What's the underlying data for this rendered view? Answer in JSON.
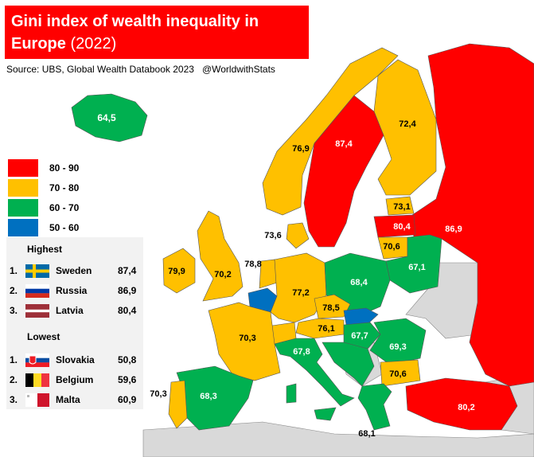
{
  "title": {
    "main_line1": "Gini index of wealth inequality in",
    "main_line2": "Europe",
    "year": "(2022)"
  },
  "source": "Source: UBS, Global Wealth Databook 2023",
  "handle": "@WorldwithStats",
  "colors": {
    "title_bg": "#ff0000",
    "c80_90": "#ff0000",
    "c70_80": "#ffc000",
    "c60_70": "#00b050",
    "c50_60": "#0070c0",
    "nodata": "#d9d9d9"
  },
  "legend": [
    {
      "label": "80 - 90",
      "color": "#ff0000"
    },
    {
      "label": "70 - 80",
      "color": "#ffc000"
    },
    {
      "label": "60 - 70",
      "color": "#00b050"
    },
    {
      "label": "50 - 60",
      "color": "#0070c0"
    }
  ],
  "highest": {
    "heading": "Highest",
    "items": [
      {
        "rank": "1.",
        "country": "Sweden",
        "value": "87,4",
        "flag": "sweden-flag"
      },
      {
        "rank": "2.",
        "country": "Russia",
        "value": "86,9",
        "flag": "russia-flag"
      },
      {
        "rank": "3.",
        "country": "Latvia",
        "value": "80,4",
        "flag": "latvia-flag"
      }
    ]
  },
  "lowest": {
    "heading": "Lowest",
    "items": [
      {
        "rank": "1.",
        "country": "Slovakia",
        "value": "50,8",
        "flag": "slovakia-flag"
      },
      {
        "rank": "2.",
        "country": "Belgium",
        "value": "59,6",
        "flag": "belgium-flag"
      },
      {
        "rank": "3.",
        "country": "Malta",
        "value": "60,9",
        "flag": "malta-flag"
      }
    ]
  },
  "map_values": {
    "iceland": "64,5",
    "norway": "76,9",
    "sweden": "87,4",
    "finland": "72,4",
    "russia": "86,9",
    "estonia": "73,1",
    "latvia": "80,4",
    "lithuania": "70,6",
    "denmark": "73,6",
    "belarus": "67,1",
    "ireland": "79,9",
    "uk": "70,2",
    "netherlands": "78,8",
    "poland": "68,4",
    "germany": "77,2",
    "czechia": "78,5",
    "austria": "76,1",
    "hungary": "67,7",
    "romania": "69,3",
    "france": "70,3",
    "italy": "67,8",
    "bulgaria": "70,6",
    "portugal": "70,3",
    "spain": "68,3",
    "turkey": "80,2",
    "greece": "68,1"
  }
}
